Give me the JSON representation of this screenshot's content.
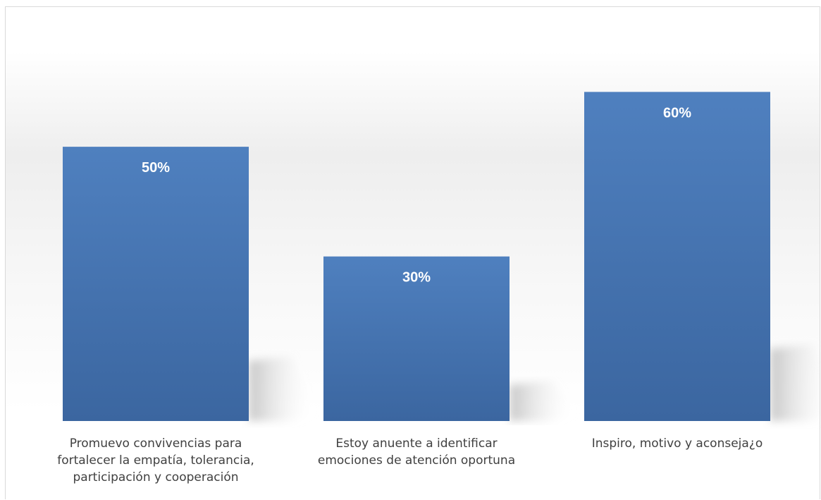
{
  "chart_data": {
    "type": "bar",
    "categories": [
      "Promuevo convivencias para fortalecer la empatía, tolerancia, participación y cooperación",
      "Estoy anuente a identificar emociones de atención oportuna",
      "Inspiro, motivo y aconseja¿o"
    ],
    "category_lines": [
      [
        "Promuevo convivencias para",
        "fortalecer la empatía, tolerancia,",
        "participación y cooperación"
      ],
      [
        "Estoy anuente a identificar",
        "emociones de atención oportuna"
      ],
      [
        "Inspiro, motivo y aconseja¿o"
      ]
    ],
    "values": [
      50,
      30,
      60
    ],
    "data_labels": [
      "50%",
      "30%",
      "60%"
    ],
    "ylim": [
      0,
      72
    ],
    "grid": false,
    "legend": "none",
    "bar_color": "#4a7ab8",
    "bar_color_dark": "#3d68a1",
    "title": "",
    "xlabel": "",
    "ylabel": ""
  }
}
